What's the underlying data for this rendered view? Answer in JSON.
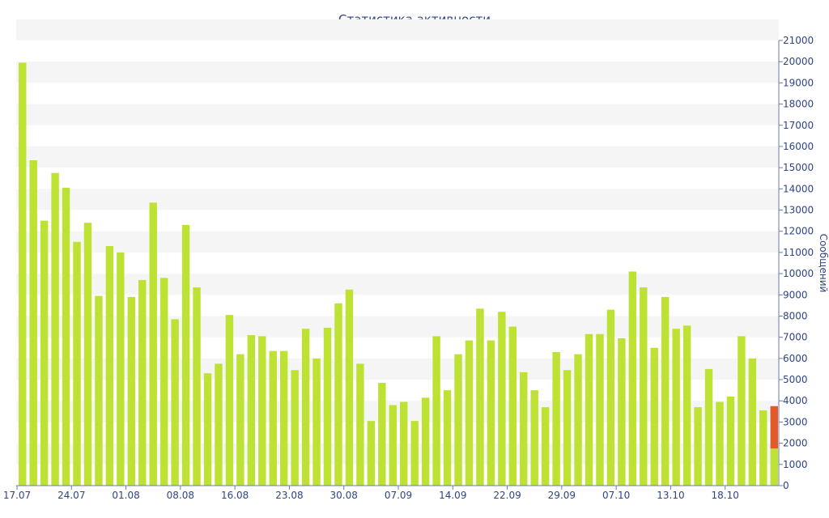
{
  "chart_data": {
    "type": "bar",
    "title": "Статистика активности",
    "ylabel": "Сообщений",
    "xlabel": "",
    "ylim": [
      0,
      21000
    ],
    "y_ticks": [
      0,
      1000,
      2000,
      3000,
      4000,
      5000,
      6000,
      7000,
      8000,
      9000,
      10000,
      11000,
      12000,
      13000,
      14000,
      15000,
      16000,
      17000,
      18000,
      19000,
      20000,
      21000
    ],
    "y_axis_position": "right",
    "grid": "alternating horizontal bands",
    "x_tick_labels": [
      "17.07",
      "24.07",
      "01.08",
      "08.08",
      "16.08",
      "23.08",
      "30.08",
      "07.09",
      "14.09",
      "22.09",
      "29.09",
      "07.10",
      "13.10",
      "18.10"
    ],
    "x_tick_label_every": 5,
    "colors": {
      "bar": "#bde233",
      "highlight": "#e35a2a",
      "text": "#2f4488",
      "axis": "#6b7aa8",
      "band": "#f5f5f5"
    },
    "series": [
      {
        "values": [
          19950,
          15350,
          12500,
          14750,
          14050,
          11500,
          12400,
          8950,
          11300,
          11000,
          8900,
          9700,
          13350,
          9800,
          7850,
          12300,
          9350,
          5300,
          5750,
          8050,
          6200,
          7100,
          7050,
          6350,
          6350,
          5450,
          7400,
          6000,
          7450,
          8600,
          9250,
          5750,
          3050,
          4850,
          3800,
          3950,
          3050,
          4150,
          7050,
          4500,
          6200,
          6850,
          8350,
          6850,
          8200,
          7500,
          5350,
          4500,
          3700,
          6300,
          5450,
          6200,
          7150,
          7150,
          8300,
          6950,
          10100,
          9350,
          6500,
          8900,
          7400,
          7550,
          3700,
          5500,
          3950,
          4200,
          7050,
          6000,
          3550,
          3750
        ]
      }
    ],
    "last_bar_split": {
      "lower": 1750,
      "total": 3750
    }
  }
}
